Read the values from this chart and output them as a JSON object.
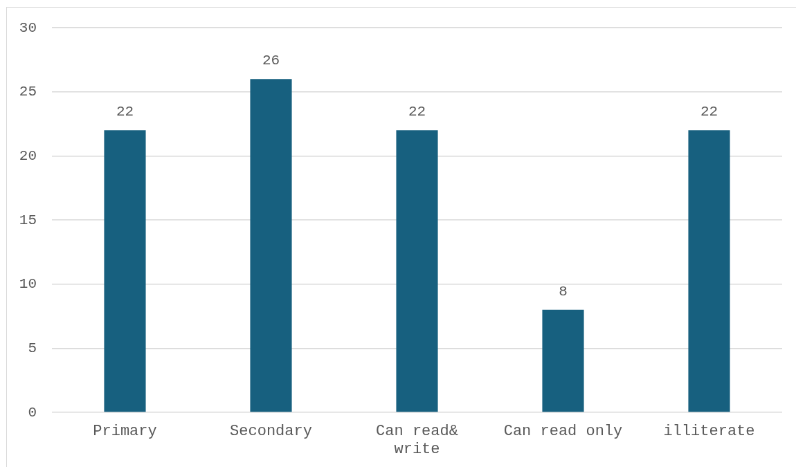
{
  "chart_data": {
    "type": "bar",
    "categories": [
      "Primary",
      "Secondary",
      "Can read& write",
      "Can read only",
      "illiterate"
    ],
    "values": [
      22,
      26,
      22,
      8,
      22
    ],
    "color": "#17607f",
    "ylim": [
      0,
      30
    ],
    "yticks": [
      0,
      5,
      10,
      15,
      20,
      25,
      30
    ],
    "grid": "y",
    "data_labels": true
  }
}
